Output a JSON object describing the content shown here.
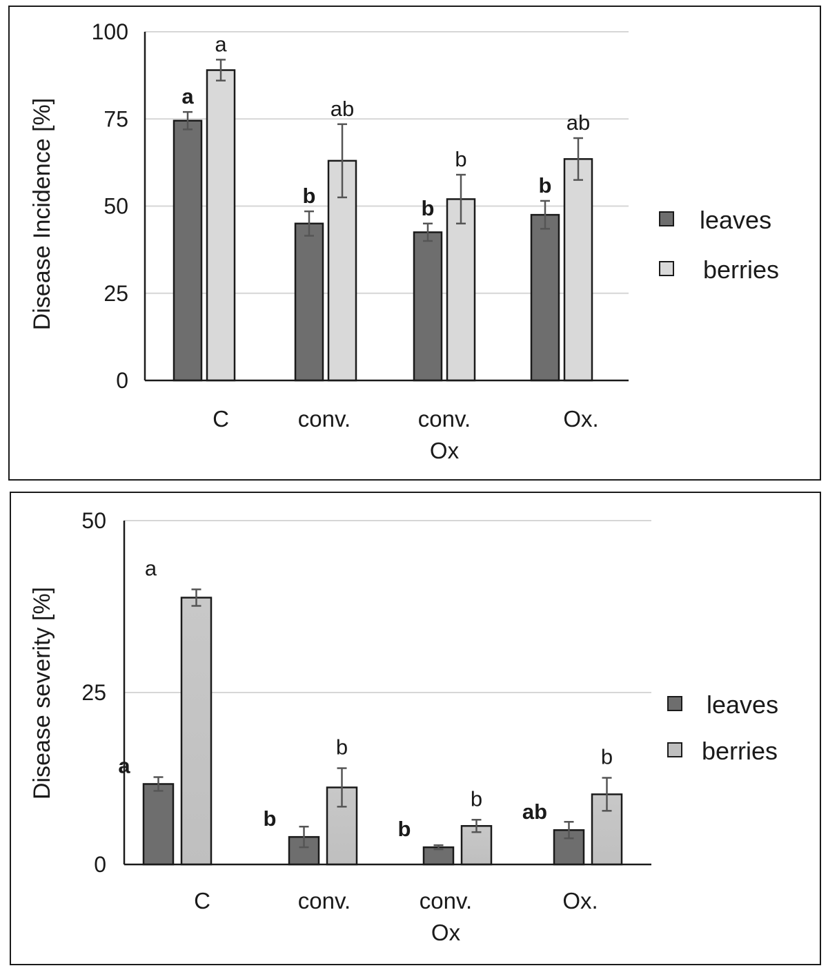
{
  "colors": {
    "leaves": "#6e6e6e",
    "berries_top": "#d9d9d9",
    "berries_bottom": "#bfbfbf",
    "grid": "#d6d6d6",
    "axis": "#1a1a1a",
    "error_bar": "#555555",
    "bar_edge": "#1a1a1a"
  },
  "chart_data": [
    {
      "type": "bar",
      "categories": [
        [
          "C"
        ],
        [
          "conv."
        ],
        [
          "conv.",
          "Ox"
        ],
        [
          "Ox."
        ]
      ],
      "ylabel": "Disease Incidence [%]",
      "xlabel": "",
      "ylim": [
        0,
        100
      ],
      "yticks": [
        "0",
        "25",
        "50",
        "75",
        "100"
      ],
      "grid": true,
      "legend_position": "right",
      "series": [
        {
          "name": "leaves",
          "values": [
            74.5,
            45,
            42.5,
            47.5
          ],
          "errors": [
            2.5,
            3.5,
            2.5,
            4
          ],
          "letters": [
            "a",
            "b",
            "b",
            "b"
          ],
          "letters_bold": true
        },
        {
          "name": "berries",
          "values": [
            89,
            63,
            52,
            63.5
          ],
          "errors": [
            3,
            10.5,
            7,
            6
          ],
          "letters": [
            "a",
            "ab",
            "b",
            "ab"
          ],
          "letters_bold": false
        }
      ]
    },
    {
      "type": "bar",
      "categories": [
        [
          "C"
        ],
        [
          "conv."
        ],
        [
          "conv.",
          "Ox"
        ],
        [
          "Ox."
        ]
      ],
      "ylabel": "Disease severity [%]",
      "xlabel": "",
      "ylim": [
        0,
        50
      ],
      "yticks": [
        "0",
        "25",
        "50"
      ],
      "grid": true,
      "legend_position": "right",
      "series": [
        {
          "name": "leaves",
          "values": [
            11.7,
            4,
            2.5,
            5
          ],
          "errors": [
            1,
            1.5,
            0.3,
            1.2
          ],
          "letters": [
            "a",
            "b",
            "b",
            "ab"
          ],
          "letters_bold": true
        },
        {
          "name": "berries",
          "values": [
            38.8,
            11.2,
            5.6,
            10.2
          ],
          "errors": [
            1.2,
            2.8,
            0.9,
            2.4
          ],
          "letters": [
            "a",
            "b",
            "b",
            "b"
          ],
          "letters_bold": false
        }
      ]
    }
  ]
}
